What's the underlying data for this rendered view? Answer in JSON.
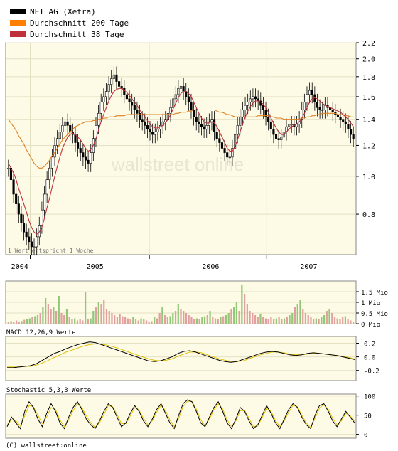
{
  "legend": [
    {
      "label": "NET AG (Xetra)",
      "color": "#000000"
    },
    {
      "label": "Durchschnitt 200 Tage",
      "color": "#ff7f00"
    },
    {
      "label": "Durchschnitt 38 Tage",
      "color": "#c0303a"
    }
  ],
  "watermark": "wallstreet online",
  "note": "1 Wert entspricht 1 Woche",
  "copyright": "(C) wallstreet:online",
  "chart_data": [
    {
      "type": "candlestick",
      "scale": "log",
      "ylim": [
        0.63,
        2.2
      ],
      "yticks": [
        0.8,
        1.0,
        1.2,
        1.4,
        1.6,
        1.8,
        2.0,
        2.2
      ],
      "ytick_labels": [
        "0.8",
        "1.0",
        "1.2",
        "1.4",
        "1.6",
        "1.8",
        "2.0",
        "2.2"
      ],
      "xtick_labels": [
        "2004",
        "2005",
        "2006",
        "2007"
      ],
      "close": [
        1.05,
        0.98,
        0.9,
        0.85,
        0.8,
        0.76,
        0.72,
        0.7,
        0.68,
        0.66,
        0.66,
        0.7,
        0.75,
        0.82,
        0.9,
        0.98,
        1.05,
        1.12,
        1.2,
        1.25,
        1.3,
        1.35,
        1.38,
        1.35,
        1.3,
        1.28,
        1.22,
        1.18,
        1.15,
        1.12,
        1.1,
        1.08,
        1.15,
        1.25,
        1.35,
        1.45,
        1.55,
        1.6,
        1.65,
        1.72,
        1.78,
        1.82,
        1.75,
        1.7,
        1.68,
        1.62,
        1.58,
        1.55,
        1.52,
        1.48,
        1.45,
        1.4,
        1.38,
        1.35,
        1.32,
        1.3,
        1.28,
        1.3,
        1.32,
        1.35,
        1.38,
        1.4,
        1.45,
        1.5,
        1.58,
        1.62,
        1.68,
        1.7,
        1.65,
        1.6,
        1.55,
        1.48,
        1.42,
        1.38,
        1.36,
        1.34,
        1.32,
        1.35,
        1.38,
        1.4,
        1.3,
        1.25,
        1.22,
        1.18,
        1.15,
        1.12,
        1.12,
        1.18,
        1.28,
        1.35,
        1.42,
        1.48,
        1.52,
        1.55,
        1.58,
        1.6,
        1.58,
        1.56,
        1.52,
        1.48,
        1.42,
        1.38,
        1.32,
        1.28,
        1.25,
        1.24,
        1.26,
        1.3,
        1.34,
        1.36,
        1.36,
        1.34,
        1.36,
        1.4,
        1.48,
        1.55,
        1.62,
        1.66,
        1.62,
        1.55,
        1.5,
        1.48,
        1.48,
        1.52,
        1.5,
        1.48,
        1.46,
        1.44,
        1.42,
        1.4,
        1.38,
        1.36,
        1.32,
        1.28,
        1.25
      ],
      "ma200": [
        1.4,
        1.37,
        1.34,
        1.31,
        1.27,
        1.24,
        1.21,
        1.17,
        1.14,
        1.11,
        1.08,
        1.06,
        1.05,
        1.05,
        1.06,
        1.08,
        1.1,
        1.13,
        1.15,
        1.18,
        1.21,
        1.24,
        1.26,
        1.28,
        1.3,
        1.32,
        1.34,
        1.35,
        1.36,
        1.37,
        1.38,
        1.38,
        1.38,
        1.39,
        1.39,
        1.4,
        1.4,
        1.41,
        1.41,
        1.42,
        1.42,
        1.42,
        1.43,
        1.43,
        1.43,
        1.43,
        1.44,
        1.44,
        1.44,
        1.44,
        1.44,
        1.44,
        1.44,
        1.44,
        1.44,
        1.44,
        1.44,
        1.44,
        1.44,
        1.44,
        1.44,
        1.44,
        1.44,
        1.44,
        1.44,
        1.45,
        1.45,
        1.46,
        1.46,
        1.46,
        1.47,
        1.47,
        1.48,
        1.48,
        1.48,
        1.48,
        1.48,
        1.48,
        1.48,
        1.48,
        1.48,
        1.47,
        1.46,
        1.46,
        1.45,
        1.44,
        1.44,
        1.43,
        1.42,
        1.42,
        1.42,
        1.42,
        1.42,
        1.42,
        1.42,
        1.42,
        1.42,
        1.43,
        1.43,
        1.43,
        1.43,
        1.43,
        1.42,
        1.42,
        1.41,
        1.41,
        1.41,
        1.4,
        1.4,
        1.4,
        1.4,
        1.4,
        1.4,
        1.4,
        1.41,
        1.41,
        1.42,
        1.42,
        1.43,
        1.43,
        1.44,
        1.44,
        1.45,
        1.45,
        1.45,
        1.45,
        1.45,
        1.45,
        1.44,
        1.44,
        1.44,
        1.43,
        1.43,
        1.42,
        1.42
      ],
      "ma38": [
        1.08,
        1.05,
        1.02,
        0.98,
        0.93,
        0.89,
        0.85,
        0.81,
        0.77,
        0.74,
        0.72,
        0.71,
        0.72,
        0.74,
        0.78,
        0.83,
        0.88,
        0.94,
        1.0,
        1.06,
        1.12,
        1.18,
        1.22,
        1.26,
        1.28,
        1.29,
        1.28,
        1.26,
        1.24,
        1.21,
        1.18,
        1.16,
        1.17,
        1.2,
        1.25,
        1.31,
        1.38,
        1.44,
        1.5,
        1.56,
        1.61,
        1.65,
        1.67,
        1.68,
        1.68,
        1.66,
        1.64,
        1.61,
        1.58,
        1.55,
        1.52,
        1.48,
        1.45,
        1.42,
        1.39,
        1.36,
        1.34,
        1.33,
        1.33,
        1.34,
        1.35,
        1.37,
        1.4,
        1.44,
        1.49,
        1.54,
        1.59,
        1.63,
        1.65,
        1.65,
        1.63,
        1.6,
        1.55,
        1.5,
        1.45,
        1.41,
        1.38,
        1.37,
        1.37,
        1.38,
        1.37,
        1.34,
        1.3,
        1.26,
        1.22,
        1.18,
        1.16,
        1.16,
        1.19,
        1.24,
        1.3,
        1.36,
        1.42,
        1.47,
        1.51,
        1.54,
        1.56,
        1.56,
        1.55,
        1.53,
        1.5,
        1.46,
        1.41,
        1.37,
        1.33,
        1.3,
        1.28,
        1.28,
        1.3,
        1.32,
        1.34,
        1.35,
        1.36,
        1.38,
        1.41,
        1.45,
        1.5,
        1.55,
        1.58,
        1.59,
        1.58,
        1.56,
        1.54,
        1.52,
        1.51,
        1.5,
        1.49,
        1.48,
        1.47,
        1.46,
        1.44,
        1.42,
        1.4,
        1.37,
        1.34
      ]
    },
    {
      "type": "bar",
      "name": "volume",
      "ylim": [
        0,
        2.0
      ],
      "yticks": [
        0,
        0.5,
        1,
        1.5
      ],
      "ytick_labels": [
        "0 Mio",
        "0.5 Mio",
        "1 Mio",
        "1.5 Mio"
      ],
      "values": [
        0.1,
        0.12,
        0.08,
        0.15,
        0.1,
        0.12,
        0.18,
        0.2,
        0.25,
        0.3,
        0.35,
        0.4,
        0.5,
        0.8,
        1.2,
        0.9,
        0.7,
        0.8,
        0.6,
        1.3,
        0.5,
        0.4,
        0.7,
        0.3,
        0.2,
        0.25,
        0.15,
        0.2,
        0.15,
        1.5,
        0.2,
        0.25,
        0.6,
        0.8,
        1.0,
        0.9,
        1.1,
        0.7,
        0.6,
        0.5,
        0.4,
        0.3,
        0.45,
        0.35,
        0.3,
        0.25,
        0.2,
        0.3,
        0.2,
        0.15,
        0.25,
        0.2,
        0.15,
        0.1,
        0.12,
        0.3,
        0.25,
        0.5,
        0.8,
        0.4,
        0.3,
        0.35,
        0.5,
        0.6,
        0.9,
        0.7,
        0.6,
        0.5,
        0.4,
        0.3,
        0.2,
        0.25,
        0.2,
        0.3,
        0.35,
        0.4,
        0.6,
        0.3,
        0.25,
        0.2,
        0.3,
        0.35,
        0.4,
        0.5,
        0.7,
        0.8,
        1.0,
        0.6,
        1.8,
        1.4,
        0.9,
        0.6,
        0.5,
        0.4,
        0.3,
        0.45,
        0.3,
        0.25,
        0.2,
        0.3,
        0.2,
        0.25,
        0.3,
        0.2,
        0.25,
        0.3,
        0.4,
        0.5,
        0.8,
        0.9,
        1.1,
        0.7,
        0.5,
        0.4,
        0.3,
        0.2,
        0.25,
        0.2,
        0.3,
        0.4,
        0.6,
        0.7,
        0.5,
        0.3,
        0.25,
        0.2,
        0.3,
        0.35,
        0.2,
        0.15,
        0.1
      ]
    },
    {
      "type": "line",
      "title": "MACD 12,26,9 Werte",
      "ylim": [
        -0.35,
        0.3
      ],
      "yticks": [
        0.2,
        0.0,
        -0.2
      ],
      "ytick_labels": [
        "0.2",
        "0.0",
        "-0.2"
      ],
      "series": [
        {
          "color": "#000000",
          "values": [
            -0.16,
            -0.16,
            -0.15,
            -0.14,
            -0.13,
            -0.1,
            -0.05,
            0.0,
            0.05,
            0.08,
            0.12,
            0.15,
            0.18,
            0.2,
            0.22,
            0.21,
            0.18,
            0.15,
            0.12,
            0.09,
            0.06,
            0.03,
            0.0,
            -0.03,
            -0.06,
            -0.07,
            -0.06,
            -0.03,
            0.0,
            0.05,
            0.08,
            0.09,
            0.07,
            0.04,
            0.01,
            -0.02,
            -0.05,
            -0.07,
            -0.08,
            -0.07,
            -0.04,
            -0.01,
            0.02,
            0.05,
            0.07,
            0.08,
            0.07,
            0.05,
            0.03,
            0.02,
            0.03,
            0.05,
            0.06,
            0.05,
            0.04,
            0.03,
            0.02,
            0.0,
            -0.02,
            -0.04
          ]
        },
        {
          "color": "#e0c000",
          "values": [
            -0.15,
            -0.15,
            -0.15,
            -0.14,
            -0.14,
            -0.12,
            -0.09,
            -0.05,
            -0.01,
            0.03,
            0.07,
            0.1,
            0.13,
            0.16,
            0.18,
            0.19,
            0.19,
            0.17,
            0.15,
            0.12,
            0.09,
            0.06,
            0.03,
            0.0,
            -0.03,
            -0.05,
            -0.06,
            -0.05,
            -0.03,
            0.01,
            0.04,
            0.07,
            0.07,
            0.06,
            0.03,
            0.0,
            -0.03,
            -0.05,
            -0.07,
            -0.07,
            -0.06,
            -0.03,
            0.0,
            0.03,
            0.05,
            0.07,
            0.07,
            0.06,
            0.04,
            0.03,
            0.03,
            0.04,
            0.05,
            0.05,
            0.04,
            0.03,
            0.02,
            0.01,
            -0.01,
            -0.03
          ]
        }
      ]
    },
    {
      "type": "line",
      "title": "Stochastic 5,3,3 Werte",
      "ylim": [
        -10,
        105
      ],
      "yticks": [
        100,
        50,
        0
      ],
      "ytick_labels": [
        "100",
        "50",
        "0"
      ],
      "series": [
        {
          "color": "#000000",
          "values": [
            20,
            45,
            30,
            15,
            60,
            85,
            70,
            40,
            20,
            55,
            80,
            60,
            30,
            15,
            45,
            70,
            85,
            65,
            40,
            25,
            15,
            35,
            60,
            80,
            70,
            45,
            20,
            30,
            55,
            75,
            60,
            35,
            20,
            40,
            65,
            80,
            55,
            30,
            15,
            50,
            80,
            90,
            85,
            60,
            30,
            20,
            45,
            70,
            85,
            60,
            30,
            15,
            40,
            70,
            60,
            35,
            15,
            25,
            50,
            75,
            55,
            30,
            15,
            40,
            65,
            80,
            70,
            45,
            25,
            15,
            50,
            75,
            80,
            60,
            35,
            20,
            40,
            60,
            45,
            30
          ]
        },
        {
          "color": "#e0c000",
          "values": [
            25,
            38,
            35,
            22,
            48,
            75,
            72,
            50,
            28,
            45,
            70,
            65,
            38,
            20,
            38,
            62,
            80,
            70,
            48,
            30,
            18,
            30,
            52,
            75,
            72,
            52,
            28,
            28,
            48,
            70,
            63,
            42,
            25,
            35,
            58,
            76,
            62,
            38,
            20,
            42,
            72,
            86,
            86,
            66,
            38,
            22,
            40,
            64,
            80,
            66,
            38,
            20,
            35,
            62,
            62,
            42,
            20,
            22,
            44,
            68,
            60,
            36,
            20,
            35,
            58,
            76,
            72,
            50,
            30,
            18,
            42,
            68,
            78,
            65,
            42,
            25,
            35,
            55,
            48,
            35
          ]
        }
      ]
    }
  ]
}
